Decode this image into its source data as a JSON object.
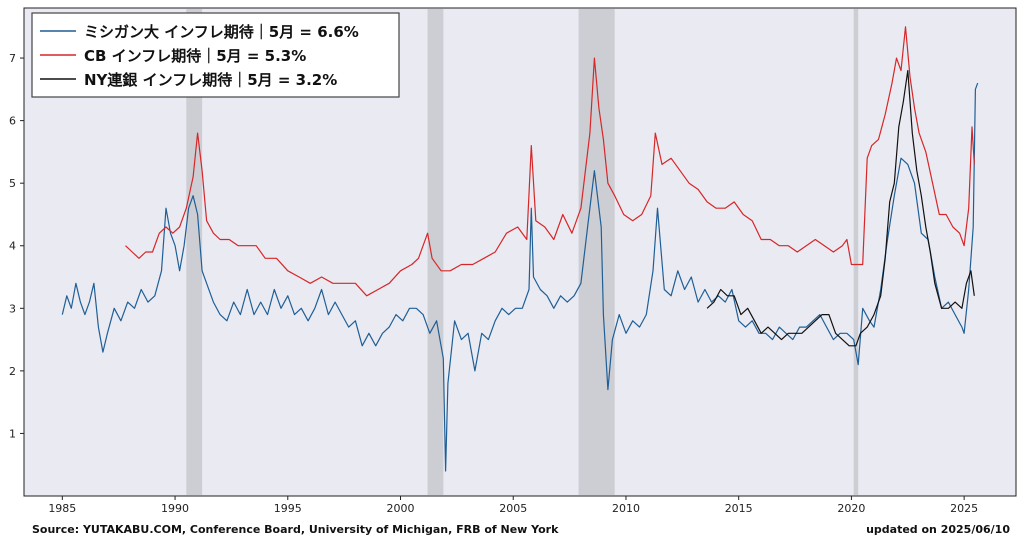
{
  "chart_data": {
    "type": "line",
    "xlim": [
      1983.3,
      2027.3
    ],
    "ylim": [
      0,
      7.8
    ],
    "x_ticks": [
      1985,
      1990,
      1995,
      2000,
      2005,
      2010,
      2015,
      2020,
      2025
    ],
    "y_ticks": [
      1,
      2,
      3,
      4,
      5,
      6,
      7
    ],
    "grid": false,
    "legend_position": "top-left",
    "recessions": [
      [
        1990.5,
        1991.2
      ],
      [
        2001.2,
        2001.9
      ],
      [
        2007.9,
        2009.5
      ],
      [
        2020.1,
        2020.3
      ]
    ],
    "series": [
      {
        "name": "ミシガン大 インフレ期待｜5月 = 6.6%",
        "color": "#1f5f96",
        "points": [
          [
            1985.0,
            2.9
          ],
          [
            1985.2,
            3.2
          ],
          [
            1985.4,
            3.0
          ],
          [
            1985.6,
            3.4
          ],
          [
            1985.8,
            3.1
          ],
          [
            1986.0,
            2.9
          ],
          [
            1986.2,
            3.1
          ],
          [
            1986.4,
            3.4
          ],
          [
            1986.6,
            2.7
          ],
          [
            1986.8,
            2.3
          ],
          [
            1987.0,
            2.6
          ],
          [
            1987.3,
            3.0
          ],
          [
            1987.6,
            2.8
          ],
          [
            1987.9,
            3.1
          ],
          [
            1988.2,
            3.0
          ],
          [
            1988.5,
            3.3
          ],
          [
            1988.8,
            3.1
          ],
          [
            1989.1,
            3.2
          ],
          [
            1989.4,
            3.6
          ],
          [
            1989.6,
            4.6
          ],
          [
            1989.8,
            4.2
          ],
          [
            1990.0,
            4.0
          ],
          [
            1990.2,
            3.6
          ],
          [
            1990.4,
            4.0
          ],
          [
            1990.6,
            4.6
          ],
          [
            1990.8,
            4.8
          ],
          [
            1991.0,
            4.5
          ],
          [
            1991.2,
            3.6
          ],
          [
            1991.4,
            3.4
          ],
          [
            1991.7,
            3.1
          ],
          [
            1992.0,
            2.9
          ],
          [
            1992.3,
            2.8
          ],
          [
            1992.6,
            3.1
          ],
          [
            1992.9,
            2.9
          ],
          [
            1993.2,
            3.3
          ],
          [
            1993.5,
            2.9
          ],
          [
            1993.8,
            3.1
          ],
          [
            1994.1,
            2.9
          ],
          [
            1994.4,
            3.3
          ],
          [
            1994.7,
            3.0
          ],
          [
            1995.0,
            3.2
          ],
          [
            1995.3,
            2.9
          ],
          [
            1995.6,
            3.0
          ],
          [
            1995.9,
            2.8
          ],
          [
            1996.2,
            3.0
          ],
          [
            1996.5,
            3.3
          ],
          [
            1996.8,
            2.9
          ],
          [
            1997.1,
            3.1
          ],
          [
            1997.4,
            2.9
          ],
          [
            1997.7,
            2.7
          ],
          [
            1998.0,
            2.8
          ],
          [
            1998.3,
            2.4
          ],
          [
            1998.6,
            2.6
          ],
          [
            1998.9,
            2.4
          ],
          [
            1999.2,
            2.6
          ],
          [
            1999.5,
            2.7
          ],
          [
            1999.8,
            2.9
          ],
          [
            2000.1,
            2.8
          ],
          [
            2000.4,
            3.0
          ],
          [
            2000.7,
            3.0
          ],
          [
            2001.0,
            2.9
          ],
          [
            2001.3,
            2.6
          ],
          [
            2001.6,
            2.8
          ],
          [
            2001.9,
            2.2
          ],
          [
            2002.0,
            0.4
          ],
          [
            2002.1,
            1.8
          ],
          [
            2002.4,
            2.8
          ],
          [
            2002.7,
            2.5
          ],
          [
            2003.0,
            2.6
          ],
          [
            2003.3,
            2.0
          ],
          [
            2003.6,
            2.6
          ],
          [
            2003.9,
            2.5
          ],
          [
            2004.2,
            2.8
          ],
          [
            2004.5,
            3.0
          ],
          [
            2004.8,
            2.9
          ],
          [
            2005.1,
            3.0
          ],
          [
            2005.4,
            3.0
          ],
          [
            2005.7,
            3.3
          ],
          [
            2005.8,
            4.6
          ],
          [
            2005.9,
            3.5
          ],
          [
            2006.2,
            3.3
          ],
          [
            2006.5,
            3.2
          ],
          [
            2006.8,
            3.0
          ],
          [
            2007.1,
            3.2
          ],
          [
            2007.4,
            3.1
          ],
          [
            2007.7,
            3.2
          ],
          [
            2008.0,
            3.4
          ],
          [
            2008.3,
            4.3
          ],
          [
            2008.6,
            5.2
          ],
          [
            2008.9,
            4.3
          ],
          [
            2009.0,
            2.9
          ],
          [
            2009.2,
            1.7
          ],
          [
            2009.4,
            2.5
          ],
          [
            2009.7,
            2.9
          ],
          [
            2010.0,
            2.6
          ],
          [
            2010.3,
            2.8
          ],
          [
            2010.6,
            2.7
          ],
          [
            2010.9,
            2.9
          ],
          [
            2011.2,
            3.6
          ],
          [
            2011.4,
            4.6
          ],
          [
            2011.7,
            3.3
          ],
          [
            2012.0,
            3.2
          ],
          [
            2012.3,
            3.6
          ],
          [
            2012.6,
            3.3
          ],
          [
            2012.9,
            3.5
          ],
          [
            2013.2,
            3.1
          ],
          [
            2013.5,
            3.3
          ],
          [
            2013.8,
            3.1
          ],
          [
            2014.1,
            3.2
          ],
          [
            2014.4,
            3.1
          ],
          [
            2014.7,
            3.3
          ],
          [
            2015.0,
            2.8
          ],
          [
            2015.3,
            2.7
          ],
          [
            2015.6,
            2.8
          ],
          [
            2015.9,
            2.6
          ],
          [
            2016.2,
            2.6
          ],
          [
            2016.5,
            2.5
          ],
          [
            2016.8,
            2.7
          ],
          [
            2017.1,
            2.6
          ],
          [
            2017.4,
            2.5
          ],
          [
            2017.7,
            2.7
          ],
          [
            2018.0,
            2.7
          ],
          [
            2018.3,
            2.8
          ],
          [
            2018.6,
            2.9
          ],
          [
            2018.9,
            2.7
          ],
          [
            2019.2,
            2.5
          ],
          [
            2019.5,
            2.6
          ],
          [
            2019.8,
            2.6
          ],
          [
            2020.1,
            2.5
          ],
          [
            2020.3,
            2.1
          ],
          [
            2020.5,
            3.0
          ],
          [
            2020.8,
            2.8
          ],
          [
            2021.0,
            2.7
          ],
          [
            2021.3,
            3.3
          ],
          [
            2021.6,
            4.1
          ],
          [
            2021.9,
            4.8
          ],
          [
            2022.2,
            5.4
          ],
          [
            2022.5,
            5.3
          ],
          [
            2022.8,
            5.0
          ],
          [
            2023.1,
            4.2
          ],
          [
            2023.4,
            4.1
          ],
          [
            2023.7,
            3.5
          ],
          [
            2024.0,
            3.0
          ],
          [
            2024.3,
            3.1
          ],
          [
            2024.6,
            2.9
          ],
          [
            2024.9,
            2.7
          ],
          [
            2025.0,
            2.6
          ],
          [
            2025.2,
            3.3
          ],
          [
            2025.4,
            4.3
          ],
          [
            2025.5,
            6.5
          ],
          [
            2025.6,
            6.6
          ]
        ]
      },
      {
        "name": "CB インフレ期待｜5月 = 5.3%",
        "color": "#d62728",
        "points": [
          [
            1987.8,
            4.0
          ],
          [
            1988.1,
            3.9
          ],
          [
            1988.4,
            3.8
          ],
          [
            1988.7,
            3.9
          ],
          [
            1989.0,
            3.9
          ],
          [
            1989.3,
            4.2
          ],
          [
            1989.6,
            4.3
          ],
          [
            1989.9,
            4.2
          ],
          [
            1990.2,
            4.3
          ],
          [
            1990.5,
            4.6
          ],
          [
            1990.8,
            5.1
          ],
          [
            1991.0,
            5.8
          ],
          [
            1991.2,
            5.2
          ],
          [
            1991.4,
            4.4
          ],
          [
            1991.7,
            4.2
          ],
          [
            1992.0,
            4.1
          ],
          [
            1992.4,
            4.1
          ],
          [
            1992.8,
            4.0
          ],
          [
            1993.2,
            4.0
          ],
          [
            1993.6,
            4.0
          ],
          [
            1994.0,
            3.8
          ],
          [
            1994.5,
            3.8
          ],
          [
            1995.0,
            3.6
          ],
          [
            1995.5,
            3.5
          ],
          [
            1996.0,
            3.4
          ],
          [
            1996.5,
            3.5
          ],
          [
            1997.0,
            3.4
          ],
          [
            1997.5,
            3.4
          ],
          [
            1998.0,
            3.4
          ],
          [
            1998.5,
            3.2
          ],
          [
            1999.0,
            3.3
          ],
          [
            1999.5,
            3.4
          ],
          [
            2000.0,
            3.6
          ],
          [
            2000.5,
            3.7
          ],
          [
            2000.8,
            3.8
          ],
          [
            2001.2,
            4.2
          ],
          [
            2001.4,
            3.8
          ],
          [
            2001.8,
            3.6
          ],
          [
            2002.2,
            3.6
          ],
          [
            2002.7,
            3.7
          ],
          [
            2003.2,
            3.7
          ],
          [
            2003.7,
            3.8
          ],
          [
            2004.2,
            3.9
          ],
          [
            2004.7,
            4.2
          ],
          [
            2005.2,
            4.3
          ],
          [
            2005.6,
            4.1
          ],
          [
            2005.8,
            5.6
          ],
          [
            2006.0,
            4.4
          ],
          [
            2006.4,
            4.3
          ],
          [
            2006.8,
            4.1
          ],
          [
            2007.2,
            4.5
          ],
          [
            2007.6,
            4.2
          ],
          [
            2008.0,
            4.6
          ],
          [
            2008.4,
            5.8
          ],
          [
            2008.6,
            7.0
          ],
          [
            2008.8,
            6.2
          ],
          [
            2009.0,
            5.7
          ],
          [
            2009.2,
            5.0
          ],
          [
            2009.5,
            4.8
          ],
          [
            2009.9,
            4.5
          ],
          [
            2010.3,
            4.4
          ],
          [
            2010.7,
            4.5
          ],
          [
            2011.1,
            4.8
          ],
          [
            2011.3,
            5.8
          ],
          [
            2011.6,
            5.3
          ],
          [
            2012.0,
            5.4
          ],
          [
            2012.4,
            5.2
          ],
          [
            2012.8,
            5.0
          ],
          [
            2013.2,
            4.9
          ],
          [
            2013.6,
            4.7
          ],
          [
            2014.0,
            4.6
          ],
          [
            2014.4,
            4.6
          ],
          [
            2014.8,
            4.7
          ],
          [
            2015.2,
            4.5
          ],
          [
            2015.6,
            4.4
          ],
          [
            2016.0,
            4.1
          ],
          [
            2016.4,
            4.1
          ],
          [
            2016.8,
            4.0
          ],
          [
            2017.2,
            4.0
          ],
          [
            2017.6,
            3.9
          ],
          [
            2018.0,
            4.0
          ],
          [
            2018.4,
            4.1
          ],
          [
            2018.8,
            4.0
          ],
          [
            2019.2,
            3.9
          ],
          [
            2019.6,
            4.0
          ],
          [
            2019.8,
            4.1
          ],
          [
            2020.0,
            3.7
          ],
          [
            2020.3,
            3.7
          ],
          [
            2020.5,
            3.7
          ],
          [
            2020.7,
            5.4
          ],
          [
            2020.9,
            5.6
          ],
          [
            2021.2,
            5.7
          ],
          [
            2021.5,
            6.1
          ],
          [
            2021.8,
            6.6
          ],
          [
            2022.0,
            7.0
          ],
          [
            2022.2,
            6.8
          ],
          [
            2022.4,
            7.5
          ],
          [
            2022.6,
            6.7
          ],
          [
            2022.8,
            6.2
          ],
          [
            2023.0,
            5.8
          ],
          [
            2023.3,
            5.5
          ],
          [
            2023.6,
            5.0
          ],
          [
            2023.9,
            4.5
          ],
          [
            2024.2,
            4.5
          ],
          [
            2024.5,
            4.3
          ],
          [
            2024.8,
            4.2
          ],
          [
            2025.0,
            4.0
          ],
          [
            2025.2,
            4.6
          ],
          [
            2025.35,
            5.9
          ],
          [
            2025.45,
            5.3
          ]
        ]
      },
      {
        "name": "NY連銀 インフレ期待｜5月 = 3.2%",
        "color": "#111111",
        "points": [
          [
            2013.6,
            3.0
          ],
          [
            2013.9,
            3.1
          ],
          [
            2014.2,
            3.3
          ],
          [
            2014.5,
            3.2
          ],
          [
            2014.8,
            3.2
          ],
          [
            2015.1,
            2.9
          ],
          [
            2015.4,
            3.0
          ],
          [
            2015.7,
            2.8
          ],
          [
            2016.0,
            2.6
          ],
          [
            2016.3,
            2.7
          ],
          [
            2016.6,
            2.6
          ],
          [
            2016.9,
            2.5
          ],
          [
            2017.2,
            2.6
          ],
          [
            2017.5,
            2.6
          ],
          [
            2017.8,
            2.6
          ],
          [
            2018.1,
            2.7
          ],
          [
            2018.4,
            2.8
          ],
          [
            2018.7,
            2.9
          ],
          [
            2019.0,
            2.9
          ],
          [
            2019.3,
            2.6
          ],
          [
            2019.6,
            2.5
          ],
          [
            2019.9,
            2.4
          ],
          [
            2020.2,
            2.4
          ],
          [
            2020.4,
            2.6
          ],
          [
            2020.7,
            2.7
          ],
          [
            2021.0,
            2.9
          ],
          [
            2021.3,
            3.2
          ],
          [
            2021.5,
            3.8
          ],
          [
            2021.7,
            4.7
          ],
          [
            2021.9,
            5.0
          ],
          [
            2022.1,
            5.9
          ],
          [
            2022.3,
            6.3
          ],
          [
            2022.5,
            6.8
          ],
          [
            2022.7,
            5.8
          ],
          [
            2022.9,
            5.2
          ],
          [
            2023.1,
            4.8
          ],
          [
            2023.3,
            4.3
          ],
          [
            2023.5,
            3.9
          ],
          [
            2023.7,
            3.4
          ],
          [
            2024.0,
            3.0
          ],
          [
            2024.3,
            3.0
          ],
          [
            2024.6,
            3.1
          ],
          [
            2024.9,
            3.0
          ],
          [
            2025.1,
            3.4
          ],
          [
            2025.3,
            3.6
          ],
          [
            2025.45,
            3.2
          ]
        ]
      }
    ]
  },
  "footer": {
    "source": "Source: YUTAKABU.COM, Conference Board, University of Michigan, FRB of New York",
    "updated": "updated on 2025/06/10"
  }
}
